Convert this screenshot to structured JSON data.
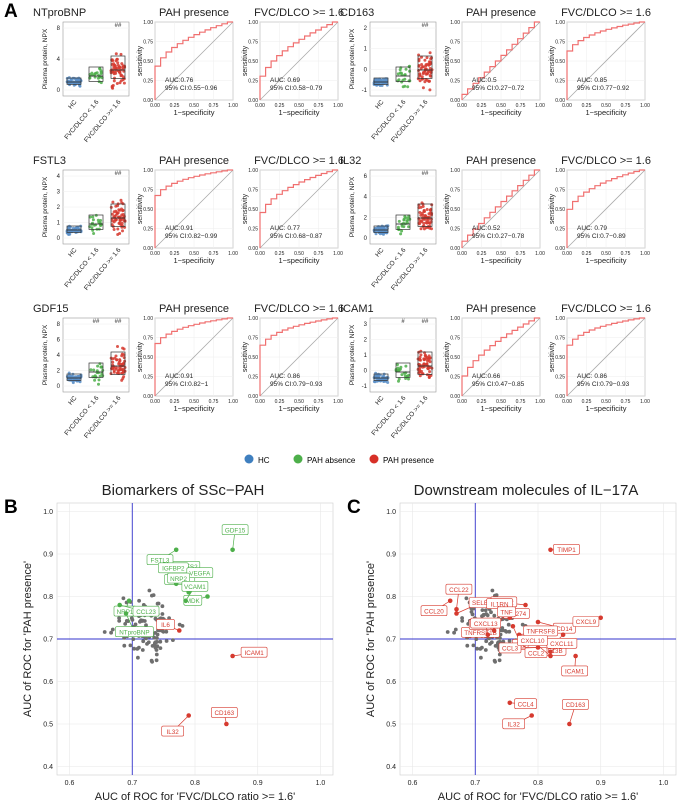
{
  "panel_letters": [
    "A",
    "B",
    "C"
  ],
  "legend": {
    "items": [
      {
        "label": "HC",
        "color": "#3F7FBF"
      },
      {
        "label": "PAH absence",
        "color": "#4DAF4A"
      },
      {
        "label": "PAH presence",
        "color": "#D73027"
      }
    ]
  },
  "colors": {
    "hc": "#5A8FC8",
    "absence": "#4DAF4A",
    "presence": "#D63A2F",
    "roc": "#F07070",
    "diag": "#AAAAAA",
    "grey_point": "#6E6E6E",
    "ref_line": "#3333CC"
  },
  "common": {
    "y_label_box": "Plasma protein, NPX",
    "x_labels_box": [
      "HC",
      "FVC/DLCO < 1.6",
      "FVC/DLCO >= 1.6"
    ],
    "roc_xlabel": "1−specificity",
    "roc_ylabel": "sensitivity",
    "roc_ticks": [
      "0.00",
      "0.25",
      "0.50",
      "0.75",
      "1.00"
    ]
  },
  "chart_data": [
    {
      "type": "box",
      "marker": "NTproBNP",
      "yticks": [
        "0",
        "4",
        "8"
      ],
      "annotations": [
        "",
        "",
        "##"
      ],
      "roc": [
        {
          "title": "PAH presence",
          "auc": "AUC:0.76",
          "ci": "95% CI:0.55−0.96"
        },
        {
          "title": "FVC/DLCO >= 1.6",
          "auc": "AUC: 0.69",
          "ci": "95% CI:0.58−0.79"
        }
      ]
    },
    {
      "type": "box",
      "marker": "CD163",
      "yticks": [
        "-1",
        "0",
        "1",
        "2"
      ],
      "annotations": [
        "",
        "",
        "##"
      ],
      "roc": [
        {
          "title": "PAH presence",
          "auc": "AUC:0.5",
          "ci": "95% CI:0.27−0.72"
        },
        {
          "title": "FVC/DLCO >= 1.6",
          "auc": "AUC: 0.85",
          "ci": "95% CI:0.77−0.92"
        }
      ]
    },
    {
      "type": "box",
      "marker": "FSTL3",
      "yticks": [
        "0",
        "1",
        "2",
        "3",
        "4"
      ],
      "annotations": [
        "",
        "",
        "##"
      ],
      "roc": [
        {
          "title": "PAH presence",
          "auc": "AUC:0.91",
          "ci": "95% CI:0.82−0.99"
        },
        {
          "title": "FVC/DLCO >= 1.6",
          "auc": "AUC: 0.77",
          "ci": "95% CI:0.68−0.87"
        }
      ]
    },
    {
      "type": "box",
      "marker": "IL32",
      "yticks": [
        "0",
        "2",
        "4",
        "6"
      ],
      "annotations": [
        "",
        "",
        "##"
      ],
      "roc": [
        {
          "title": "PAH presence",
          "auc": "AUC:0.52",
          "ci": "95% CI:0.27−0.78"
        },
        {
          "title": "FVC/DLCO >= 1.6",
          "auc": "AUC: 0.79",
          "ci": "95% CI:0.7−0.89"
        }
      ]
    },
    {
      "type": "box",
      "marker": "GDF15",
      "yticks": [
        "0",
        "2",
        "4",
        "6",
        "8"
      ],
      "annotations": [
        "",
        "##",
        "##"
      ],
      "roc": [
        {
          "title": "PAH presence",
          "auc": "AUC:0.91",
          "ci": "95% CI:0.82−1"
        },
        {
          "title": "FVC/DLCO >= 1.6",
          "auc": "AUC: 0.86",
          "ci": "95% CI:0.79−0.93"
        }
      ]
    },
    {
      "type": "box",
      "marker": "ICAM1",
      "yticks": [
        "-1",
        "0",
        "1",
        "2",
        "3"
      ],
      "annotations": [
        "",
        "#",
        "##"
      ],
      "roc": [
        {
          "title": "PAH presence",
          "auc": "AUC:0.66",
          "ci": "95% CI:0.47−0.85"
        },
        {
          "title": "FVC/DLCO >= 1.6",
          "auc": "AUC: 0.86",
          "ci": "95% CI:0.79−0.93"
        }
      ]
    },
    {
      "type": "scatter",
      "title": "Biomarkers of SSc−PAH",
      "xlabel": "AUC of ROC for 'FVC/DLCO ratio >= 1.6'",
      "ylabel": "AUC of ROC for 'PAH presence'",
      "xlim": [
        0.58,
        1.02
      ],
      "ylim": [
        0.38,
        1.02
      ],
      "xticks": [
        "0.6",
        "0.7",
        "0.8",
        "0.9",
        "1.0"
      ],
      "yticks": [
        "0.4",
        "0.5",
        "0.6",
        "0.7",
        "0.8",
        "0.9",
        "1.0"
      ],
      "ref_x": 0.7,
      "ref_y": 0.7,
      "labeled": [
        {
          "label": "RARRES2",
          "x": 0.755,
          "y": 0.87,
          "color": "green"
        },
        {
          "label": "FSTL3",
          "x": 0.77,
          "y": 0.91,
          "color": "green"
        },
        {
          "label": "GDF15",
          "x": 0.86,
          "y": 0.91,
          "color": "green"
        },
        {
          "label": "CHI3L1",
          "x": 0.76,
          "y": 0.86,
          "color": "green"
        },
        {
          "label": "IGFBP2",
          "x": 0.8,
          "y": 0.86,
          "color": "green"
        },
        {
          "label": "VEGFA",
          "x": 0.77,
          "y": 0.83,
          "color": "green"
        },
        {
          "label": "NRP1",
          "x": 0.695,
          "y": 0.79,
          "color": "green"
        },
        {
          "label": "NRP2",
          "x": 0.79,
          "y": 0.81,
          "color": "green"
        },
        {
          "label": "CCL23",
          "x": 0.68,
          "y": 0.78,
          "color": "green"
        },
        {
          "label": "MDK",
          "x": 0.82,
          "y": 0.8,
          "color": "green"
        },
        {
          "label": "VCAM1",
          "x": 0.785,
          "y": 0.79,
          "color": "green"
        },
        {
          "label": "NTproBNP",
          "x": 0.69,
          "y": 0.76,
          "color": "green"
        },
        {
          "label": "IL6",
          "x": 0.775,
          "y": 0.72,
          "color": "red"
        },
        {
          "label": "ICAM1",
          "x": 0.86,
          "y": 0.66,
          "color": "red"
        },
        {
          "label": "IL32",
          "x": 0.79,
          "y": 0.52,
          "color": "red"
        },
        {
          "label": "CD163",
          "x": 0.85,
          "y": 0.5,
          "color": "red"
        }
      ]
    },
    {
      "type": "scatter",
      "title": "Downstream molecules of IL−17A",
      "xlabel": "AUC of ROC for 'FVC/DLCO ratio >= 1.6'",
      "ylabel": "AUC of ROC for 'PAH presence'",
      "xlim": [
        0.58,
        1.02
      ],
      "ylim": [
        0.38,
        1.02
      ],
      "xticks": [
        "0.6",
        "0.7",
        "0.8",
        "0.9",
        "1.0"
      ],
      "yticks": [
        "0.4",
        "0.5",
        "0.6",
        "0.7",
        "0.8",
        "0.9",
        "1.0"
      ],
      "ref_x": 0.7,
      "ref_y": 0.7,
      "labeled": [
        {
          "label": "TIMP1",
          "x": 0.82,
          "y": 0.91,
          "color": "red"
        },
        {
          "label": "CCL20",
          "x": 0.66,
          "y": 0.79,
          "color": "red"
        },
        {
          "label": "CCL22",
          "x": 0.67,
          "y": 0.77,
          "color": "red"
        },
        {
          "label": "CD274",
          "x": 0.75,
          "y": 0.78,
          "color": "red"
        },
        {
          "label": "ACTA2",
          "x": 0.78,
          "y": 0.78,
          "color": "red"
        },
        {
          "label": "SELE",
          "x": 0.67,
          "y": 0.76,
          "color": "red"
        },
        {
          "label": "TNFRSF1B",
          "x": 0.715,
          "y": 0.74,
          "color": "red"
        },
        {
          "label": "IL1RN",
          "x": 0.755,
          "y": 0.75,
          "color": "red"
        },
        {
          "label": "CD14",
          "x": 0.8,
          "y": 0.74,
          "color": "red"
        },
        {
          "label": "CXCL9",
          "x": 0.9,
          "y": 0.75,
          "color": "red"
        },
        {
          "label": "TNF",
          "x": 0.735,
          "y": 0.73,
          "color": "red"
        },
        {
          "label": "IL6",
          "x": 0.76,
          "y": 0.73,
          "color": "red"
        },
        {
          "label": "CD40",
          "x": 0.73,
          "y": 0.72,
          "color": "red"
        },
        {
          "label": "TNFRSF8",
          "x": 0.77,
          "y": 0.71,
          "color": "red"
        },
        {
          "label": "TNFSF13B",
          "x": 0.84,
          "y": 0.71,
          "color": "red"
        },
        {
          "label": "CXCL13",
          "x": 0.72,
          "y": 0.71,
          "color": "red"
        },
        {
          "label": "CCL2",
          "x": 0.77,
          "y": 0.69,
          "color": "red"
        },
        {
          "label": "CCL3",
          "x": 0.8,
          "y": 0.68,
          "color": "red"
        },
        {
          "label": "CXCL11",
          "x": 0.82,
          "y": 0.67,
          "color": "red"
        },
        {
          "label": "ICAM1",
          "x": 0.86,
          "y": 0.66,
          "color": "red"
        },
        {
          "label": "CXCL10",
          "x": 0.82,
          "y": 0.66,
          "color": "red"
        },
        {
          "label": "CCL4",
          "x": 0.755,
          "y": 0.55,
          "color": "red"
        },
        {
          "label": "IL32",
          "x": 0.79,
          "y": 0.52,
          "color": "red"
        },
        {
          "label": "CD163",
          "x": 0.85,
          "y": 0.5,
          "color": "red"
        }
      ]
    }
  ]
}
